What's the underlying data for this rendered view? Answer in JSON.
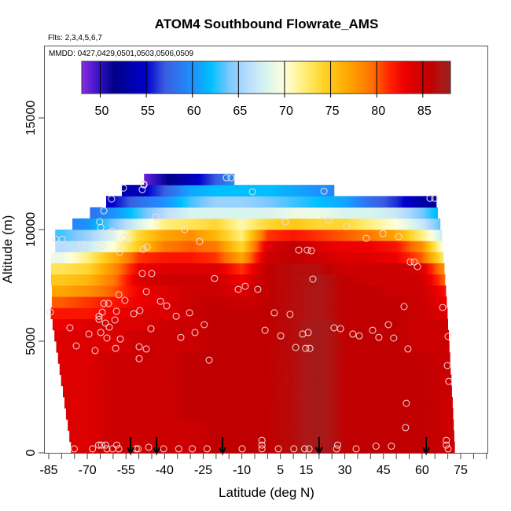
{
  "chart_data": {
    "type": "heatmap",
    "title": "ATOM4 Southbound Flowrate_AMS",
    "subtitle": "Flts: 2,3,4,5,6,7",
    "annotation": "MMDD: 0427,0429,0501,0503,0506,0509",
    "xlabel": "Latitude (deg N)",
    "ylabel": "Altitude (m)",
    "xlim": [
      -86.8,
      85.4
    ],
    "ylim": [
      0,
      18230
    ],
    "x_ticks": [
      -85,
      -70,
      -55,
      -40,
      -25,
      -10,
      5,
      15,
      30,
      45,
      60,
      75
    ],
    "x_tick_labels": [
      "-85",
      "-70",
      "-55",
      "-40",
      "-25",
      "-10",
      "5",
      "15",
      "30",
      "45",
      "60",
      "75"
    ],
    "x_minor_tick_step": 5,
    "y_ticks": [
      0,
      5000,
      10000,
      15000
    ],
    "y_tick_labels": [
      "0",
      "5000",
      "10000",
      "15000"
    ],
    "colorbar": {
      "range": [
        48,
        88
      ],
      "ticks": [
        50,
        55,
        60,
        65,
        70,
        75,
        80,
        85
      ],
      "tick_labels": [
        "50",
        "55",
        "60",
        "65",
        "70",
        "75",
        "80",
        "85"
      ],
      "stops": [
        [
          48,
          "#8a2be2"
        ],
        [
          50,
          "#3010c0"
        ],
        [
          51.5,
          "#000088"
        ],
        [
          55,
          "#0000cc"
        ],
        [
          57,
          "#3a5ee0"
        ],
        [
          60,
          "#1e90ff"
        ],
        [
          62,
          "#00bfff"
        ],
        [
          64,
          "#7cc8ff"
        ],
        [
          66,
          "#b8dcff"
        ],
        [
          68,
          "#d8f4ee"
        ],
        [
          70,
          "#ffffdc"
        ],
        [
          72,
          "#fff080"
        ],
        [
          74.5,
          "#ffd020"
        ],
        [
          77,
          "#ffa500"
        ],
        [
          79.5,
          "#ff7000"
        ],
        [
          81.5,
          "#ff2000"
        ],
        [
          83,
          "#ee0000"
        ],
        [
          85,
          "#cc0000"
        ],
        [
          86,
          "#c00000"
        ],
        [
          87,
          "#ac1818"
        ],
        [
          88,
          "#9c1c1c"
        ]
      ]
    },
    "lat_nodes": [
      -80,
      -70,
      -60,
      -50,
      -40,
      -30,
      -20,
      -10,
      0,
      10,
      20,
      30,
      40,
      50,
      60,
      70
    ],
    "altitude_bin_m": 500,
    "rows": [
      {
        "alt": 0,
        "lat_min": -76.4,
        "lat_max": 72.6,
        "values": [
          84,
          84,
          85,
          85,
          85,
          85,
          86,
          86,
          86,
          86.5,
          87.5,
          86,
          86,
          86,
          86,
          85
        ]
      },
      {
        "alt": 500,
        "lat_min": -77.0,
        "lat_max": 72.4,
        "values": [
          84,
          84,
          85,
          85,
          85,
          85,
          86,
          86,
          86,
          86.5,
          87.5,
          86,
          86,
          86,
          86,
          85
        ]
      },
      {
        "alt": 1000,
        "lat_min": -77.6,
        "lat_max": 72.2,
        "values": [
          84,
          84,
          85,
          85,
          85,
          85,
          86,
          86,
          86,
          86.5,
          87.5,
          86,
          86,
          86,
          86,
          85
        ]
      },
      {
        "alt": 1500,
        "lat_min": -78.3,
        "lat_max": 72.0,
        "values": [
          84,
          84,
          85,
          85,
          85,
          86,
          86,
          86,
          86,
          86.5,
          87.5,
          86,
          86,
          86,
          86,
          85
        ]
      },
      {
        "alt": 2000,
        "lat_min": -78.9,
        "lat_max": 71.8,
        "values": [
          84,
          84,
          85,
          85,
          85,
          86,
          86,
          86,
          86,
          86.5,
          87.5,
          86,
          86,
          86,
          86,
          85
        ]
      },
      {
        "alt": 2500,
        "lat_min": -79.5,
        "lat_max": 71.5,
        "values": [
          84,
          84,
          85,
          85,
          85,
          86,
          86,
          86,
          86,
          86.5,
          87.5,
          86,
          86,
          86,
          86,
          85
        ]
      },
      {
        "alt": 3000,
        "lat_min": -80.2,
        "lat_max": 71.3,
        "values": [
          84,
          84,
          85,
          85,
          85,
          86,
          86,
          86,
          86,
          86.5,
          87.5,
          86,
          86,
          86,
          86,
          85
        ]
      },
      {
        "alt": 3500,
        "lat_min": -80.8,
        "lat_max": 71.0,
        "values": [
          84,
          84,
          85,
          85,
          85,
          86,
          86,
          86,
          86,
          86.5,
          87.5,
          86,
          86,
          86,
          86,
          85
        ]
      },
      {
        "alt": 4000,
        "lat_min": -81.4,
        "lat_max": 70.8,
        "values": [
          84,
          84,
          85,
          85,
          85,
          86,
          86,
          86,
          86,
          86.5,
          87.5,
          86,
          86,
          86,
          86,
          85
        ]
      },
      {
        "alt": 4500,
        "lat_min": -82.1,
        "lat_max": 70.5,
        "values": [
          84,
          84,
          84,
          85,
          85,
          85,
          86,
          86,
          86,
          86.5,
          87.5,
          86,
          86,
          86,
          85,
          85
        ]
      },
      {
        "alt": 5000,
        "lat_min": -82.8,
        "lat_max": 70.3,
        "values": [
          84,
          84,
          84,
          85,
          85,
          85,
          86,
          86,
          86,
          86.5,
          87.5,
          86,
          86,
          86,
          85,
          85
        ]
      },
      {
        "alt": 5500,
        "lat_min": -83.5,
        "lat_max": 70.0,
        "values": [
          83,
          84,
          84,
          84,
          85,
          85,
          86,
          86,
          86,
          86.5,
          87.5,
          86,
          86,
          86,
          85,
          85
        ]
      },
      {
        "alt": 6000,
        "lat_min": -84.2,
        "lat_max": 69.8,
        "values": [
          82,
          82,
          83,
          84,
          84,
          85,
          86,
          86,
          86,
          86.5,
          87,
          86,
          86,
          86,
          85,
          84
        ]
      },
      {
        "alt": 6500,
        "lat_min": -83.8,
        "lat_max": 69.5,
        "values": [
          80,
          81,
          82,
          83,
          84,
          85,
          86,
          85,
          86,
          86.5,
          87,
          86,
          86,
          86,
          85,
          83
        ]
      },
      {
        "alt": 7000,
        "lat_min": -83.8,
        "lat_max": 69.2,
        "values": [
          77,
          78,
          80,
          83,
          84,
          85,
          85,
          84,
          86,
          86.5,
          87,
          86,
          86,
          85,
          85,
          82
        ]
      },
      {
        "alt": 7500,
        "lat_min": -84.1,
        "lat_max": 68.9,
        "values": [
          75,
          76,
          79,
          84,
          85,
          85,
          85,
          83,
          86,
          86.5,
          87,
          86,
          85,
          85,
          85,
          79
        ]
      },
      {
        "alt": 8000,
        "lat_min": -84.1,
        "lat_max": 68.6,
        "values": [
          73,
          74,
          78,
          83,
          84,
          84,
          84,
          81,
          86,
          86.5,
          86.5,
          85,
          85,
          85,
          84,
          77
        ]
      },
      {
        "alt": 8500,
        "lat_min": -84.1,
        "lat_max": 68.3,
        "values": [
          69,
          72,
          76,
          81,
          82,
          82,
          81,
          77,
          85,
          86,
          85,
          84,
          84,
          83,
          80,
          71
        ]
      },
      {
        "alt": 9000,
        "lat_min": -82.5,
        "lat_max": 68.0,
        "values": [
          66,
          67,
          70,
          75,
          79,
          80,
          79,
          74,
          84,
          86,
          84,
          83,
          83,
          82,
          78,
          68
        ]
      },
      {
        "alt": 9500,
        "lat_min": -82.5,
        "lat_max": 67.7,
        "values": [
          63,
          65,
          68,
          74,
          77,
          78,
          76,
          72,
          81,
          82,
          81,
          80,
          79,
          77,
          72,
          66
        ]
      },
      {
        "alt": 10000,
        "lat_min": -75.8,
        "lat_max": 67.0,
        "values": [
          59,
          60,
          64,
          68,
          72,
          73,
          74,
          71,
          74,
          75,
          74,
          74,
          72,
          70,
          67,
          62
        ]
      },
      {
        "alt": 10500,
        "lat_min": -69.0,
        "lat_max": 66.0,
        "values": [
          58,
          58,
          60,
          63,
          66,
          68,
          68,
          68,
          68,
          69,
          69,
          68,
          68,
          67,
          64,
          60
        ]
      },
      {
        "alt": 11000,
        "lat_min": -62.7,
        "lat_max": 65.5,
        "values": [
          54,
          54,
          55,
          58,
          60,
          63,
          65,
          65,
          64,
          63,
          62,
          61,
          58,
          56,
          53,
          52
        ]
      },
      {
        "alt": 11500,
        "lat_min": -56.6,
        "lat_max": 25.8,
        "values": [
          53,
          53,
          53,
          54,
          57,
          61,
          62,
          62,
          62,
          61,
          60,
          59,
          59,
          59,
          59,
          59
        ]
      },
      {
        "alt": 12000,
        "lat_min": -48.0,
        "lat_max": -13.0,
        "values": [
          48,
          48,
          48,
          48,
          51,
          54,
          57,
          61,
          62,
          62,
          62,
          62,
          62,
          62,
          62,
          62
        ]
      }
    ],
    "observations": [
      [
        -48.1,
        12040
      ],
      [
        -16.0,
        12320
      ],
      [
        -14.2,
        12320
      ],
      [
        -56.0,
        11860
      ],
      [
        -48.0,
        12000
      ],
      [
        -48.7,
        11790
      ],
      [
        -5.9,
        11690
      ],
      [
        21.9,
        11720
      ],
      [
        -60.6,
        11370
      ],
      [
        63.1,
        11400
      ],
      [
        64.9,
        11400
      ],
      [
        -63.6,
        10840
      ],
      [
        -43.5,
        10560
      ],
      [
        -37.4,
        10600
      ],
      [
        0.5,
        10840
      ],
      [
        -65.2,
        10350
      ],
      [
        -64.8,
        10100
      ],
      [
        -61.5,
        9860
      ],
      [
        -60.3,
        9930
      ],
      [
        -32.2,
        10000
      ],
      [
        6.9,
        10350
      ],
      [
        23.7,
        10420
      ],
      [
        30.7,
        10140
      ],
      [
        -82.3,
        9570
      ],
      [
        -79.8,
        9570
      ],
      [
        -55.7,
        9640
      ],
      [
        -53.9,
        9570
      ],
      [
        -72.2,
        9330
      ],
      [
        -64.5,
        9260
      ],
      [
        -48.4,
        9120
      ],
      [
        -46.8,
        9220
      ],
      [
        -26.4,
        9470
      ],
      [
        -57.5,
        8980
      ],
      [
        38.3,
        9610
      ],
      [
        44.8,
        9820
      ],
      [
        50.9,
        9680
      ],
      [
        12.1,
        9080
      ],
      [
        15.4,
        9080
      ],
      [
        17.0,
        9050
      ],
      [
        55.4,
        8550
      ],
      [
        57.0,
        8550
      ],
      [
        58.2,
        8340
      ],
      [
        -48.7,
        8030
      ],
      [
        -45.0,
        8030
      ],
      [
        -20.6,
        7810
      ],
      [
        17.6,
        7780
      ],
      [
        -47.1,
        7220
      ],
      [
        -11.4,
        7320
      ],
      [
        -8.7,
        7460
      ],
      [
        -3.8,
        7320
      ],
      [
        -57.8,
        7080
      ],
      [
        -55.4,
        6830
      ],
      [
        -63.6,
        6690
      ],
      [
        -61.8,
        6690
      ],
      [
        -41.6,
        6790
      ],
      [
        -39.2,
        6580
      ],
      [
        -84.4,
        6300
      ],
      [
        -64.2,
        6300
      ],
      [
        -65.5,
        6120
      ],
      [
        -65.5,
        5980
      ],
      [
        -58.7,
        6340
      ],
      [
        -49.6,
        6370
      ],
      [
        -52.0,
        6230
      ],
      [
        -59.3,
        5950
      ],
      [
        -63.0,
        5810
      ],
      [
        -61.5,
        5630
      ],
      [
        -35.5,
        6120
      ],
      [
        -30.3,
        6270
      ],
      [
        -24.6,
        5740
      ],
      [
        2.6,
        6270
      ],
      [
        8.7,
        6200
      ],
      [
        53.0,
        6550
      ],
      [
        68.0,
        6510
      ],
      [
        -76.8,
        5600
      ],
      [
        -69.4,
        5320
      ],
      [
        -64.8,
        5390
      ],
      [
        -62.4,
        5140
      ],
      [
        -57.2,
        5100
      ],
      [
        -45.3,
        5560
      ],
      [
        -33.7,
        5170
      ],
      [
        -28.2,
        5390
      ],
      [
        -1.0,
        5490
      ],
      [
        5.1,
        5240
      ],
      [
        13.6,
        5320
      ],
      [
        15.8,
        5390
      ],
      [
        25.8,
        5600
      ],
      [
        28.3,
        5560
      ],
      [
        33.1,
        5320
      ],
      [
        35.6,
        5240
      ],
      [
        40.8,
        5490
      ],
      [
        43.2,
        5170
      ],
      [
        46.9,
        5740
      ],
      [
        49.0,
        5140
      ],
      [
        70.1,
        5210
      ],
      [
        -74.3,
        4790
      ],
      [
        -67.0,
        4580
      ],
      [
        -59.0,
        4680
      ],
      [
        -49.9,
        4750
      ],
      [
        -47.1,
        4650
      ],
      [
        -49.9,
        4220
      ],
      [
        -22.7,
        4150
      ],
      [
        10.9,
        4720
      ],
      [
        14.8,
        4680
      ],
      [
        16.4,
        4680
      ],
      [
        54.5,
        4650
      ],
      [
        69.8,
        3910
      ],
      [
        70.4,
        3200
      ],
      [
        53.9,
        2220
      ],
      [
        53.6,
        1130
      ],
      [
        -75.1,
        180
      ],
      [
        -68.0,
        180
      ],
      [
        -65.6,
        350
      ],
      [
        -64.5,
        350
      ],
      [
        -62.9,
        350
      ],
      [
        -62.4,
        180
      ],
      [
        -60.2,
        180
      ],
      [
        -58.6,
        350
      ],
      [
        -57.8,
        180
      ],
      [
        -51.0,
        180
      ],
      [
        -50.3,
        180
      ],
      [
        -46.2,
        250
      ],
      [
        -40.4,
        180
      ],
      [
        -34.5,
        180
      ],
      [
        -29.2,
        180
      ],
      [
        -23.5,
        180
      ],
      [
        -9.9,
        180
      ],
      [
        -2.2,
        180
      ],
      [
        -2.2,
        350
      ],
      [
        -2.2,
        560
      ],
      [
        4.2,
        180
      ],
      [
        10.2,
        180
      ],
      [
        14.4,
        180
      ],
      [
        16.1,
        180
      ],
      [
        26.8,
        180
      ],
      [
        27.2,
        350
      ],
      [
        34.4,
        180
      ],
      [
        42.1,
        300
      ],
      [
        48.1,
        300
      ],
      [
        69.4,
        560
      ],
      [
        69.4,
        350
      ],
      [
        70.1,
        180
      ]
    ],
    "flight_markers_lat": [
      -53.2,
      -43.1,
      -17.5,
      20.0,
      61.6
    ]
  }
}
